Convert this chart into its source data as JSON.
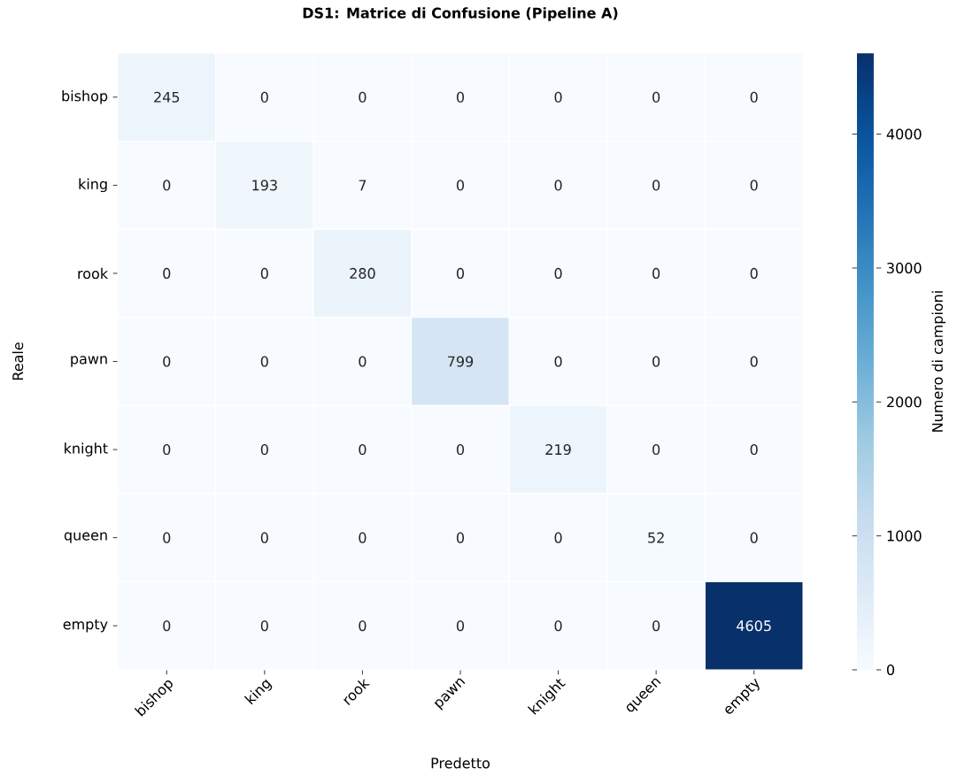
{
  "chart_data": {
    "type": "heatmap",
    "title": "DS1: Matrice di Confusione (Pipeline A)",
    "xlabel": "Predetto",
    "ylabel": "Reale",
    "clabel": "Numero di campioni",
    "categories": [
      "bishop",
      "king",
      "rook",
      "pawn",
      "knight",
      "queen",
      "empty"
    ],
    "y_categories": [
      "bishop",
      "king",
      "rook",
      "pawn",
      "knight",
      "queen",
      "empty"
    ],
    "cells": [
      [
        245,
        0,
        0,
        0,
        0,
        0,
        0
      ],
      [
        0,
        193,
        7,
        0,
        0,
        0,
        0
      ],
      [
        0,
        0,
        280,
        0,
        0,
        0,
        0
      ],
      [
        0,
        0,
        0,
        799,
        0,
        0,
        0
      ],
      [
        0,
        0,
        0,
        0,
        219,
        0,
        0
      ],
      [
        0,
        0,
        0,
        0,
        0,
        52,
        0
      ],
      [
        0,
        0,
        0,
        0,
        0,
        0,
        4605
      ]
    ],
    "clim": [
      0,
      4605
    ],
    "cticks": [
      0,
      1000,
      2000,
      3000,
      4000
    ],
    "data_labels": true
  }
}
